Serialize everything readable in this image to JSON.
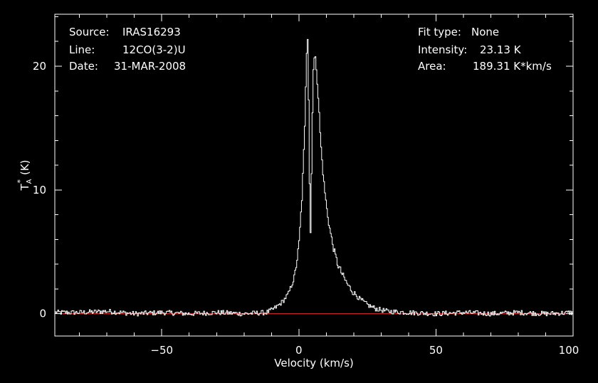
{
  "info": {
    "source_label": "Source:",
    "source_value": "IRAS16293",
    "line_label": "Line:",
    "line_value": "12CO(3-2)U",
    "date_label": "Date:",
    "date_value": "31-MAR-2008",
    "fit_label": "Fit type:",
    "fit_value": "None",
    "intensity_label": "Intensity:",
    "intensity_value": "23.13 K",
    "area_label": "Area:",
    "area_value": "189.31 K*km/s"
  },
  "chart_data": {
    "type": "line",
    "xlabel": "Velocity (km/s)",
    "ylabel_main": "T",
    "ylabel_sub": "A",
    "ylabel_sup": "*",
    "ylabel_unit": "(K)",
    "xlim": [
      -89,
      100
    ],
    "ylim": [
      -1.8,
      24.2
    ],
    "x_ticks": [
      -50,
      0,
      50,
      100
    ],
    "x_tick_labels": [
      "−50",
      "0",
      "50",
      "100"
    ],
    "y_ticks": [
      0,
      10,
      20
    ],
    "y_tick_labels": [
      "0",
      "10",
      "20"
    ],
    "colors": {
      "background": "#000000",
      "spectrum": "#ffffff",
      "baseline": "#ff3333"
    },
    "series": [
      {
        "x": [
          -89,
          -80,
          -70,
          -60,
          -50,
          -40,
          -30,
          -20,
          -12,
          -10,
          -8,
          -6,
          -4,
          -2,
          -1,
          0,
          1,
          2,
          2.5,
          3,
          3.5,
          4,
          4.5,
          5,
          5.5,
          6,
          6.5,
          7,
          7.5,
          8,
          9,
          10,
          11,
          12,
          13,
          14,
          16,
          18,
          20,
          22,
          25,
          28,
          32,
          40,
          50,
          60,
          70,
          80,
          90,
          100
        ],
        "y": [
          0.1,
          0.1,
          0.2,
          0,
          0.1,
          0,
          0.1,
          0,
          0.1,
          0.3,
          0.6,
          1.0,
          1.6,
          2.8,
          4.0,
          6.0,
          9.5,
          15.0,
          20.0,
          23.13,
          16.0,
          5.2,
          12.0,
          19.5,
          20.6,
          20.5,
          19.0,
          17.2,
          15.0,
          13.2,
          10.5,
          8.5,
          7.0,
          5.8,
          4.8,
          4.0,
          3.0,
          2.2,
          1.7,
          1.2,
          0.7,
          0.4,
          0.2,
          0.1,
          0,
          0.1,
          0,
          0.1,
          0,
          0.1
        ]
      }
    ],
    "baseline": 0,
    "noise_rms": 0.2
  }
}
